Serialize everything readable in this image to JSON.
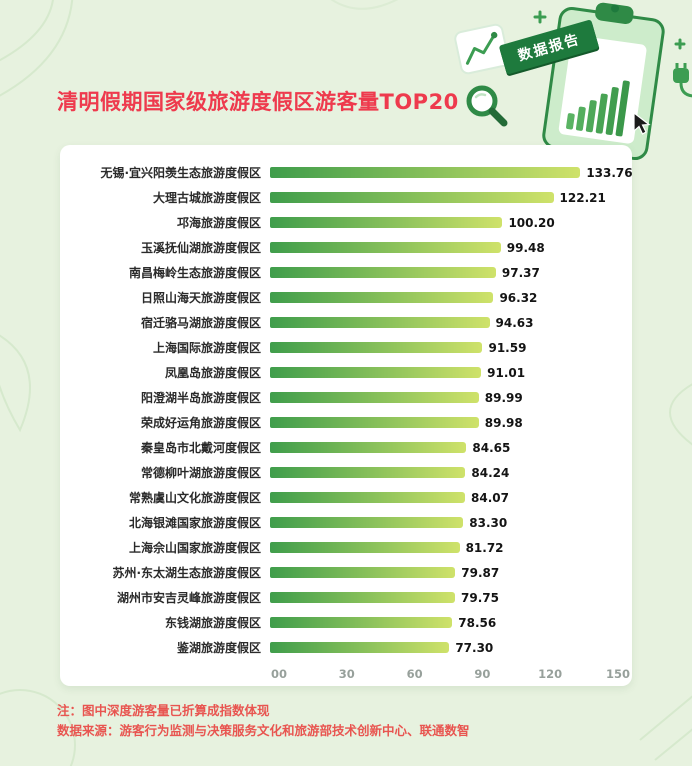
{
  "page": {
    "title": "清明假期国家级旅游度假区游客量TOP20",
    "badge_label": "数据报告",
    "note1": "注：图中深度游客量已折算成指数体现",
    "note2": "数据来源：游客行为监测与决策服务文化和旅游部技术创新中心、联通数智",
    "colors": {
      "background": "#e7f2df",
      "card": "#ffffff",
      "title_red": "#ee3a4d",
      "note_red": "#e85550",
      "bar_gradient_start": "#3f9d4b",
      "bar_gradient_end": "#cfe26a",
      "axis_tick": "#97a09b",
      "badge_green": "#1e7a3d"
    }
  },
  "chart_data": {
    "type": "bar",
    "orientation": "horizontal",
    "title": "清明假期国家级旅游度假区游客量TOP20",
    "xlabel": "",
    "ylabel": "",
    "xlim": [
      0,
      150
    ],
    "xticks": [
      0,
      30,
      60,
      90,
      120,
      150
    ],
    "xtick_labels": [
      "00",
      "30",
      "60",
      "90",
      "120",
      "150"
    ],
    "grid": false,
    "legend": "none",
    "categories": [
      "无锡·宜兴阳羡生态旅游度假区",
      "大理古城旅游度假区",
      "邛海旅游度假区",
      "玉溪抚仙湖旅游度假区",
      "南昌梅岭生态旅游度假区",
      "日照山海天旅游度假区",
      "宿迁骆马湖旅游度假区",
      "上海国际旅游度假区",
      "凤凰岛旅游度假区",
      "阳澄湖半岛旅游度假区",
      "荣成好运角旅游度假区",
      "秦皇岛市北戴河度假区",
      "常德柳叶湖旅游度假区",
      "常熟虞山文化旅游度假区",
      "北海银滩国家旅游度假区",
      "上海佘山国家旅游度假区",
      "苏州·东太湖生态旅游度假区",
      "湖州市安吉灵峰旅游度假区",
      "东钱湖旅游度假区",
      "鉴湖旅游度假区"
    ],
    "values": [
      133.76,
      122.21,
      100.2,
      99.48,
      97.37,
      96.32,
      94.63,
      91.59,
      91.01,
      89.99,
      89.98,
      84.65,
      84.24,
      84.07,
      83.3,
      81.72,
      79.87,
      79.75,
      78.56,
      77.3
    ],
    "value_labels": [
      "133.76",
      "122.21",
      "100.20",
      "99.48",
      "97.37",
      "96.32",
      "94.63",
      "91.59",
      "91.01",
      "89.99",
      "89.98",
      "84.65",
      "84.24",
      "84.07",
      "83.30",
      "81.72",
      "79.87",
      "79.75",
      "78.56",
      "77.30"
    ]
  }
}
